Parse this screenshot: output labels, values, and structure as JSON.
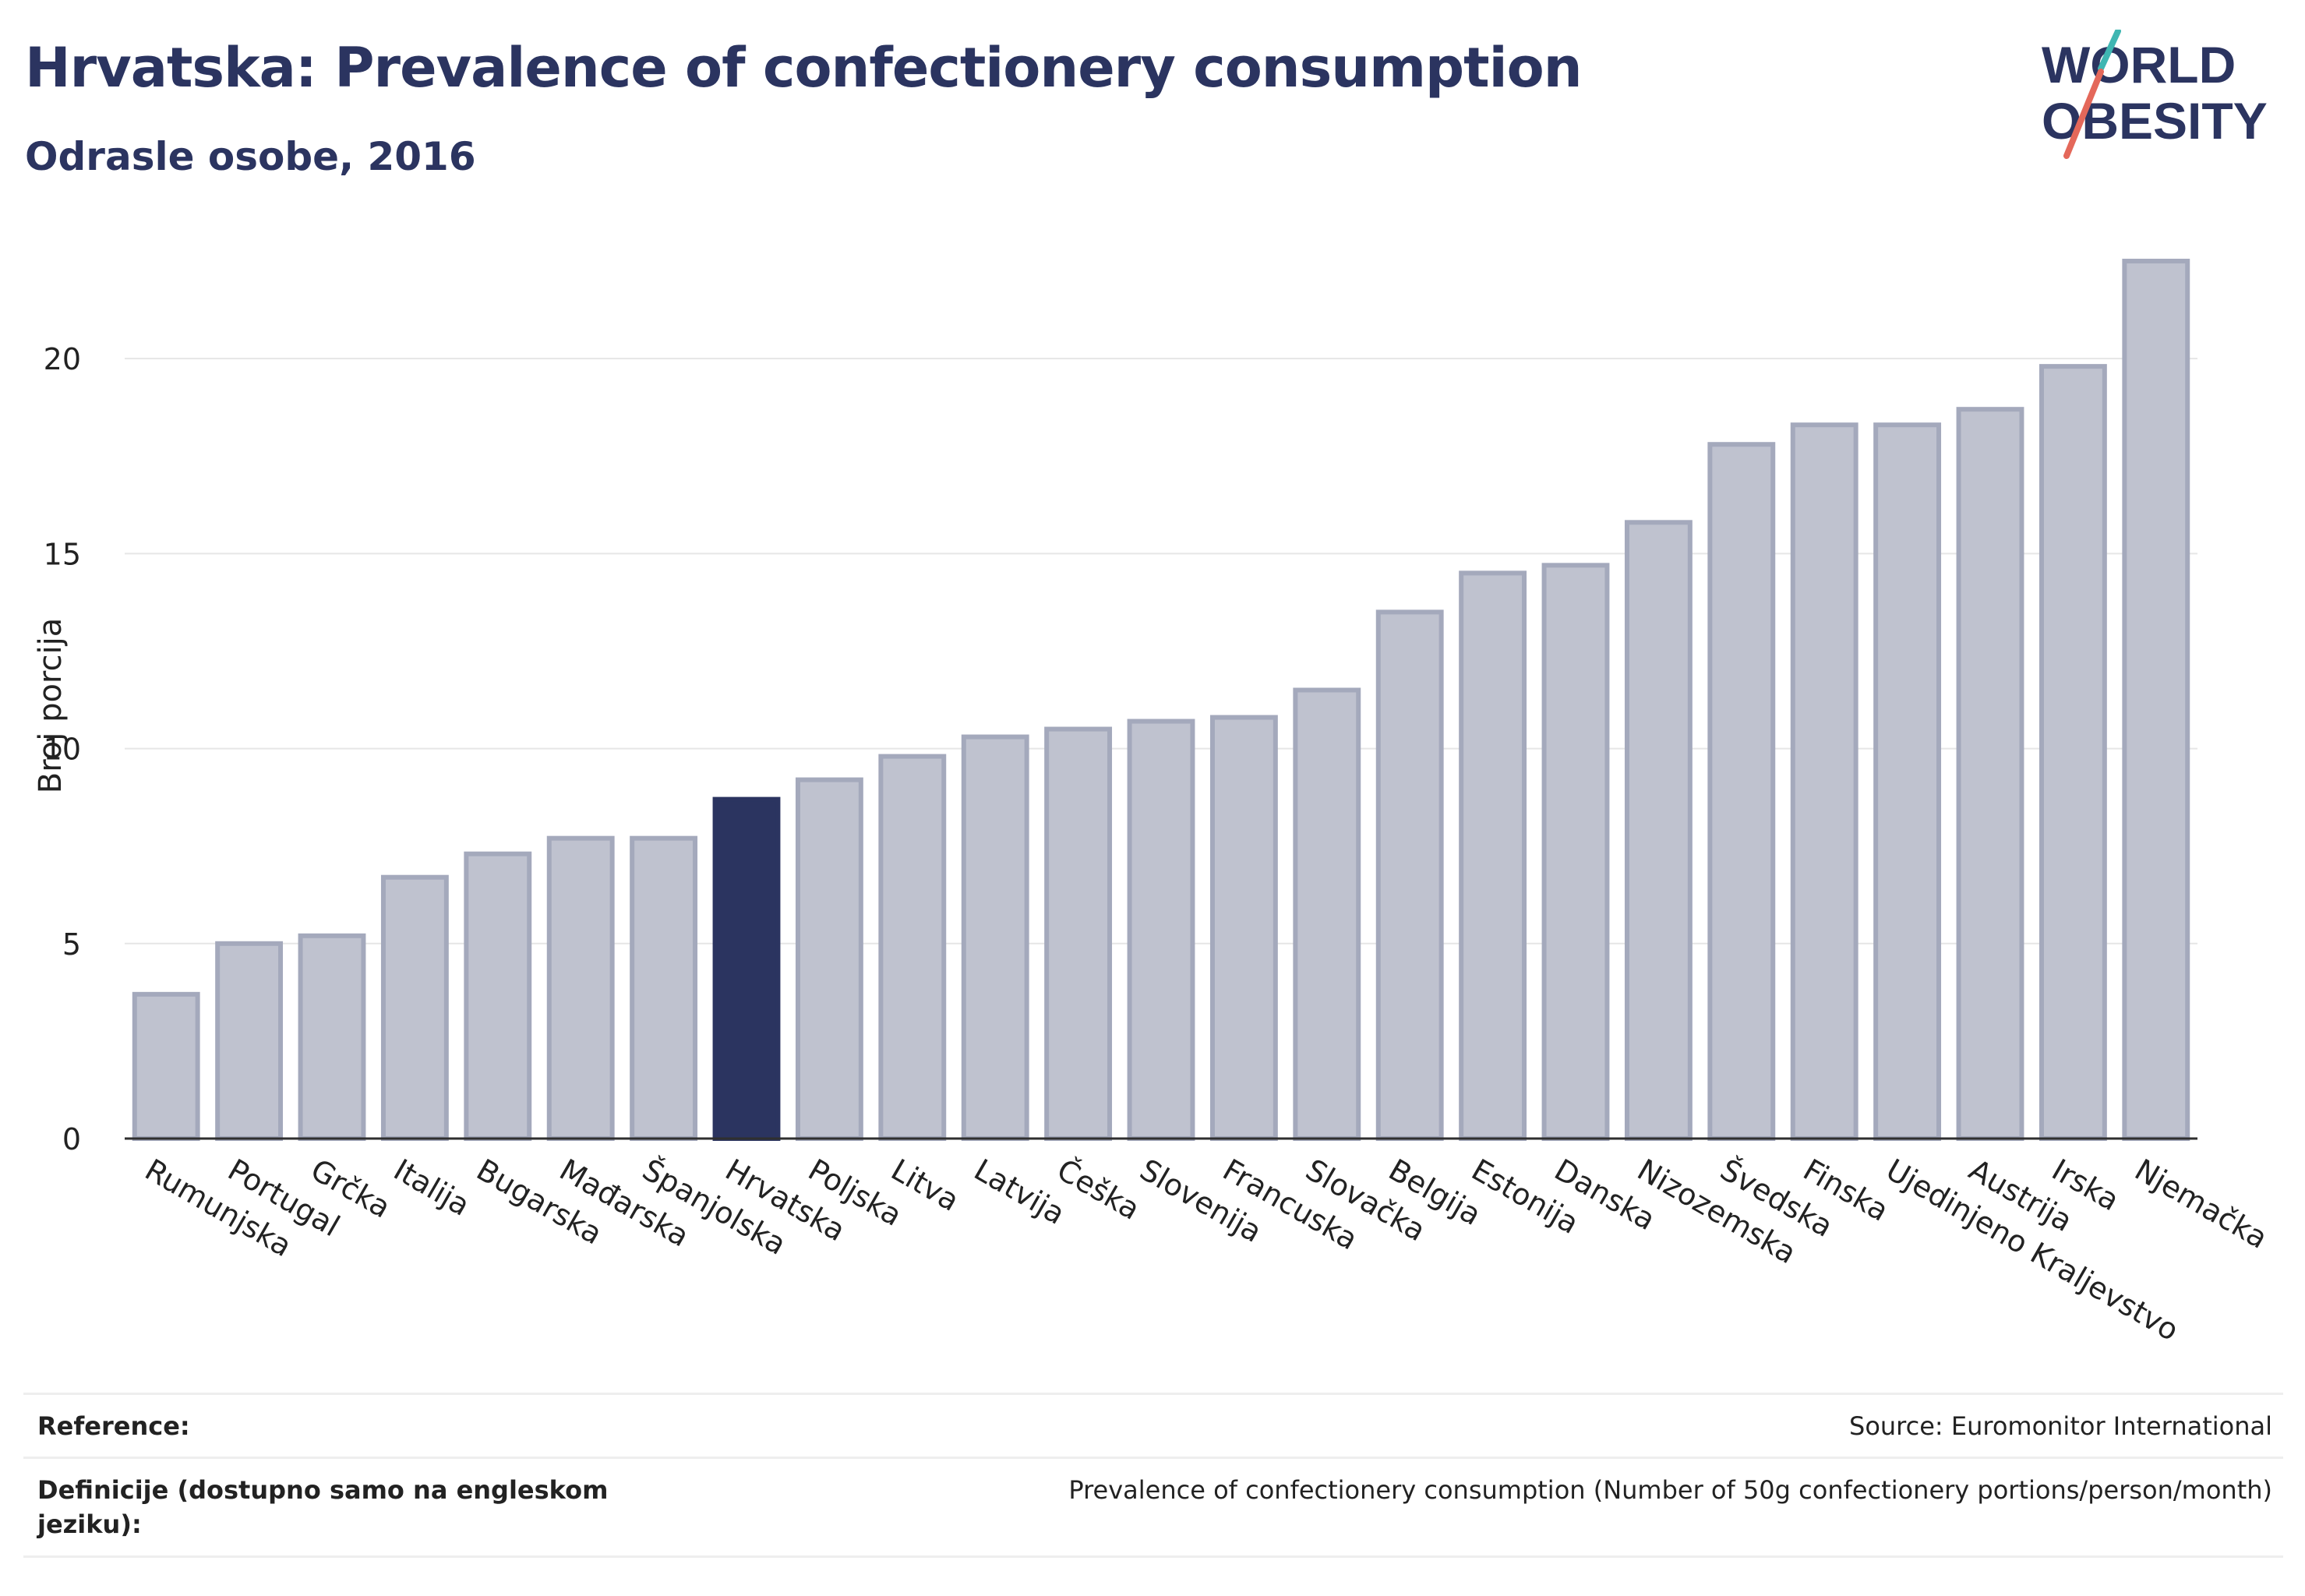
{
  "header": {
    "title": "Hrvatska: Prevalence of confectionery consumption",
    "subtitle": "Odrasle osobe, 2016"
  },
  "logo": {
    "line1": "WORLD",
    "line2": "OBESITY",
    "slash_colors": [
      "#3fb6b2",
      "#e4685a"
    ],
    "text_color": "#2b3460"
  },
  "colors": {
    "bar": "#bfc2cf",
    "bar_border": "#a4a9bc",
    "highlight": "#2b3460",
    "grid": "#e6e6e6",
    "axis": "#2f2f2f"
  },
  "chart_data": {
    "type": "bar",
    "ylabel": "Broj porcija",
    "ylim": [
      0,
      23
    ],
    "yticks": [
      0,
      5,
      10,
      15,
      20
    ],
    "grid": true,
    "highlight": "Hrvatska",
    "categories": [
      "Rumunjska",
      "Portugal",
      "Grčka",
      "Italija",
      "Bugarska",
      "Mađarska",
      "Španjolska",
      "Hrvatska",
      "Poljska",
      "Litva",
      "Latvija",
      "Češka",
      "Slovenija",
      "Francuska",
      "Slovačka",
      "Belgija",
      "Estonija",
      "Danska",
      "Nizozemska",
      "Švedska",
      "Finska",
      "Ujedinjeno Kraljevstvo",
      "Austrija",
      "Irska",
      "Njemačka"
    ],
    "values": [
      3.7,
      5.0,
      5.2,
      6.7,
      7.3,
      7.7,
      7.7,
      8.7,
      9.2,
      9.8,
      10.3,
      10.5,
      10.7,
      10.8,
      11.5,
      13.5,
      14.5,
      14.7,
      15.8,
      17.8,
      18.3,
      18.3,
      18.7,
      19.8,
      22.5
    ]
  },
  "footer": {
    "reference_label": "Reference:",
    "reference_value": "Source: Euromonitor International",
    "definition_label": "Definicije (dostupno samo na engleskom jeziku):",
    "definition_value": "Prevalence of confectionery consumption (Number of 50g confectionery portions/person/month)"
  }
}
